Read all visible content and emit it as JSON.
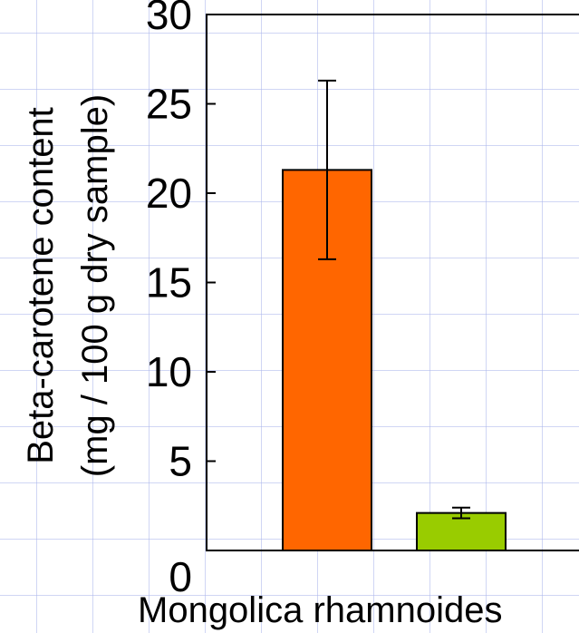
{
  "chart_data": {
    "type": "bar",
    "ylabel_line1": "Beta-carotene content",
    "ylabel_line2": "(mg / 100 g dry sample)",
    "xlabel": "Mongolica rhamnoides",
    "ylim": [
      0,
      30
    ],
    "yticks": [
      "0",
      "5",
      "10",
      "15",
      "20",
      "25",
      "30"
    ],
    "grid": true,
    "bars": [
      {
        "value": 21.3,
        "error": 5.0,
        "color": "#ff6600"
      },
      {
        "value": 2.1,
        "error": 0.3,
        "color": "#99cc00"
      }
    ]
  }
}
